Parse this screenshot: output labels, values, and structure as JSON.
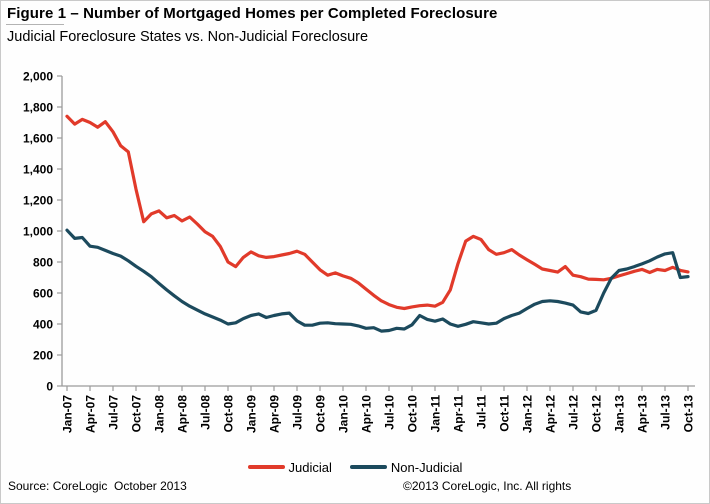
{
  "header": {
    "title": "Figure 1 – Number of Mortgaged Homes per Completed Foreclosure",
    "subtitle": "Judicial Foreclosure States vs. Non-Judicial Foreclosure"
  },
  "chart_data": {
    "type": "line",
    "title": "Figure 1 – Number of Mortgaged Homes per Completed Foreclosure",
    "subtitle": "Judicial Foreclosure States vs. Non-Judicial Foreclosure",
    "x_unit": "month",
    "x_range": [
      "Jan-07",
      "Oct-13"
    ],
    "x_tick_labels": [
      "Jan-07",
      "Apr-07",
      "Jul-07",
      "Oct-07",
      "Jan-08",
      "Apr-08",
      "Jul-08",
      "Oct-08",
      "Jan-09",
      "Apr-09",
      "Jul-09",
      "Oct-09",
      "Jan-10",
      "Apr-10",
      "Jul-10",
      "Oct-10",
      "Jan-11",
      "Apr-11",
      "Jul-11",
      "Oct-11",
      "Jan-12",
      "Apr-12",
      "Jul-12",
      "Oct-12",
      "Jan-13",
      "Apr-13",
      "Jul-13",
      "Oct-13"
    ],
    "ylim": [
      0,
      2000
    ],
    "y_tick_step": 200,
    "y_tick_labels": [
      "0",
      "200",
      "400",
      "600",
      "800",
      "1,000",
      "1,200",
      "1,400",
      "1,600",
      "1,800",
      "2,000"
    ],
    "grid": false,
    "legend_position": "bottom",
    "axis_color": "#9b9b9b",
    "series": [
      {
        "name": "Judicial",
        "color": "#e13a2a",
        "values": [
          1740,
          1690,
          1720,
          1700,
          1670,
          1705,
          1640,
          1550,
          1510,
          1270,
          1060,
          1110,
          1130,
          1085,
          1100,
          1065,
          1090,
          1045,
          995,
          965,
          900,
          800,
          770,
          830,
          865,
          840,
          830,
          835,
          845,
          855,
          870,
          850,
          800,
          750,
          715,
          730,
          710,
          695,
          665,
          625,
          585,
          550,
          525,
          508,
          500,
          510,
          518,
          522,
          515,
          540,
          620,
          790,
          935,
          965,
          945,
          880,
          850,
          860,
          880,
          845,
          815,
          785,
          755,
          745,
          735,
          770,
          715,
          705,
          690,
          688,
          685,
          695,
          710,
          725,
          740,
          752,
          732,
          752,
          745,
          766,
          746,
          736
        ]
      },
      {
        "name": "Non-Judicial",
        "color": "#1c4a5d",
        "values": [
          1005,
          952,
          958,
          902,
          895,
          875,
          855,
          838,
          808,
          772,
          740,
          705,
          662,
          620,
          582,
          545,
          515,
          490,
          465,
          445,
          425,
          400,
          408,
          435,
          455,
          465,
          442,
          455,
          465,
          470,
          420,
          392,
          392,
          405,
          408,
          402,
          400,
          398,
          388,
          372,
          376,
          354,
          358,
          372,
          368,
          395,
          455,
          430,
          418,
          432,
          400,
          385,
          398,
          415,
          408,
          400,
          405,
          435,
          455,
          470,
          500,
          528,
          545,
          550,
          545,
          535,
          522,
          478,
          468,
          488,
          600,
          695,
          745,
          755,
          770,
          788,
          808,
          832,
          852,
          860,
          700,
          706
        ]
      }
    ]
  },
  "footer": {
    "source": "Source: CoreLogic  October 2013",
    "copyright": "©2013 CoreLogic, Inc. All rights"
  }
}
